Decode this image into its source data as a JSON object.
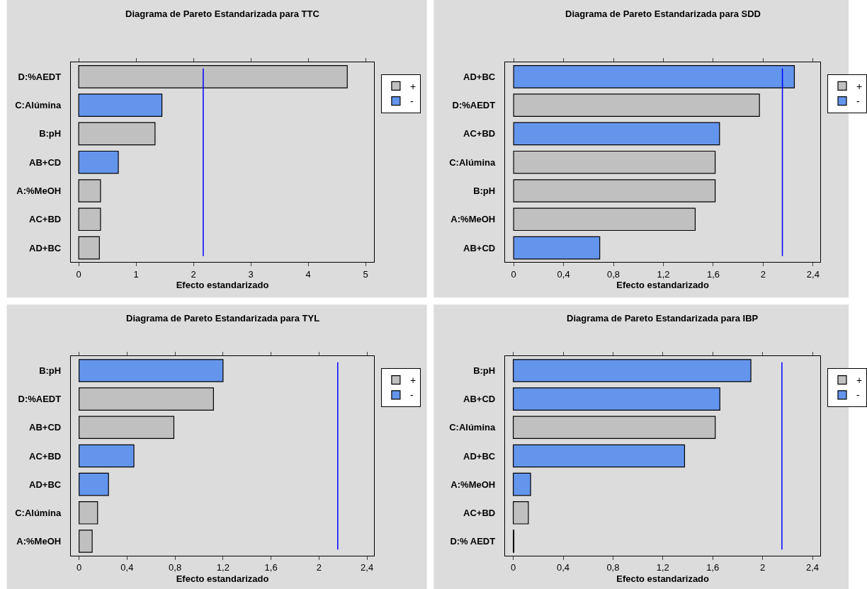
{
  "chart_data": [
    {
      "type": "bar",
      "orientation": "horizontal",
      "title": "Diagrama de Pareto Estandarizada para TTC",
      "xlabel": "Efecto estandarizado",
      "categories": [
        "D:%AEDT",
        "C:Alúmina",
        "B:pH",
        "AB+CD",
        "A:%MeOH",
        "AC+BD",
        "AD+BC"
      ],
      "series": [
        {
          "name": "+",
          "color": "#c0c0c0",
          "values": [
            4.68,
            null,
            1.33,
            null,
            0.38,
            0.38,
            0.36
          ]
        },
        {
          "name": "-",
          "color": "#6495ed",
          "values": [
            null,
            1.45,
            null,
            0.69,
            null,
            null,
            null
          ]
        }
      ],
      "xlim": [
        -0.14,
        5.15
      ],
      "xticks": [
        0,
        1,
        2,
        3,
        4,
        5
      ],
      "ref_lines": [
        {
          "axis": "x",
          "value": 2.17,
          "color": "#0000ff"
        }
      ],
      "legend": "top right",
      "grid": false
    },
    {
      "type": "bar",
      "orientation": "horizontal",
      "title": "Diagrama de Pareto Estandarizada para SDD",
      "xlabel": "Efecto estandarizado",
      "categories": [
        "AD+BC",
        "D:%AEDT",
        "AC+BD",
        "C:Alúmina",
        "B:pH",
        "A:%MeOH",
        "AB+CD"
      ],
      "series": [
        {
          "name": "+",
          "color": "#c0c0c0",
          "values": [
            null,
            1.97,
            null,
            1.615,
            1.615,
            1.455,
            null
          ]
        },
        {
          "name": "-",
          "color": "#6495ed",
          "values": [
            2.25,
            null,
            1.65,
            null,
            null,
            null,
            0.69
          ]
        }
      ],
      "xlim": [
        -0.07,
        2.46
      ],
      "xticks": [
        0,
        {
          "value": 0.4,
          "label": "0,4"
        },
        {
          "value": 0.8,
          "label": "0,8"
        },
        {
          "value": 1.2,
          "label": "1,2"
        },
        {
          "value": 1.6,
          "label": "1,6"
        },
        2,
        {
          "value": 2.4,
          "label": "2,4"
        }
      ],
      "ref_lines": [
        {
          "axis": "x",
          "value": 2.154,
          "color": "#0000ff"
        }
      ],
      "legend": "top right",
      "grid": false
    },
    {
      "type": "bar",
      "orientation": "horizontal",
      "title": "Diagrama de Pareto Estandarizada para TYL",
      "xlabel": "Efecto estandarizado",
      "categories": [
        "B:pH",
        "D:%AEDT",
        "AB+CD",
        "AC+BD",
        "AD+BC",
        "C:Alúmina",
        "A:%MeOH"
      ],
      "series": [
        {
          "name": "+",
          "color": "#c0c0c0",
          "values": [
            null,
            1.12,
            0.79,
            null,
            null,
            0.154,
            0.109
          ]
        },
        {
          "name": "-",
          "color": "#6495ed",
          "values": [
            1.2,
            null,
            null,
            0.457,
            0.245,
            null,
            null
          ]
        }
      ],
      "xlim": [
        -0.07,
        2.46
      ],
      "xticks": [
        0,
        {
          "value": 0.4,
          "label": "0,4"
        },
        {
          "value": 0.8,
          "label": "0,8"
        },
        {
          "value": 1.2,
          "label": "1,2"
        },
        {
          "value": 1.6,
          "label": "1,6"
        },
        2,
        {
          "value": 2.4,
          "label": "2,4"
        }
      ],
      "ref_lines": [
        {
          "axis": "x",
          "value": 2.156,
          "color": "#0000ff"
        }
      ],
      "legend": "top right",
      "grid": false
    },
    {
      "type": "bar",
      "orientation": "horizontal",
      "title": "Diagrama de Pareto Estandarizada para IBP",
      "xlabel": "Efecto estandarizado",
      "categories": [
        "B:pH",
        "AB+CD",
        "C:Alúmina",
        "AD+BC",
        "A:%MeOH",
        "AC+BD",
        "D:% AEDT"
      ],
      "series": [
        {
          "name": "+",
          "color": "#c0c0c0",
          "values": [
            null,
            null,
            1.62,
            null,
            null,
            0.121,
            0.005
          ]
        },
        {
          "name": "-",
          "color": "#6495ed",
          "values": [
            1.906,
            1.657,
            null,
            1.374,
            0.139,
            null,
            null
          ]
        }
      ],
      "xlim": [
        -0.067,
        2.465
      ],
      "xticks": [
        0,
        {
          "value": 0.4,
          "label": "0,4"
        },
        {
          "value": 0.8,
          "label": "0,8"
        },
        {
          "value": 1.2,
          "label": "1,2"
        },
        {
          "value": 1.6,
          "label": "1,6"
        },
        2,
        {
          "value": 2.4,
          "label": "2,4"
        }
      ],
      "ref_lines": [
        {
          "axis": "x",
          "value": 2.155,
          "color": "#0000ff"
        }
      ],
      "legend": "top right",
      "grid": false
    }
  ]
}
